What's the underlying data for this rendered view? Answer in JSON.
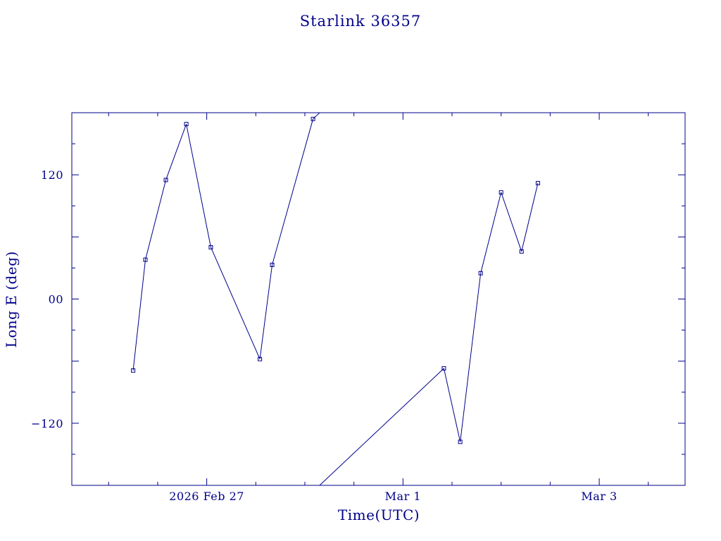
{
  "chart_data": {
    "type": "line",
    "title": "Starlink 36357",
    "xlabel": "Time(UTC)",
    "ylabel": "Long E (deg)",
    "x_tick_labels": [
      {
        "date": "2026-02-27",
        "label": "2026 Feb 27"
      },
      {
        "date": "2026-03-01",
        "label": "Mar  1"
      },
      {
        "date": "2026-03-03",
        "label": "Mar  3"
      }
    ],
    "y_tick_labels": [
      {
        "value": 120,
        "label": "120"
      },
      {
        "value": 0,
        "label": "00"
      },
      {
        "value": -120,
        "label": "−120"
      }
    ],
    "xlim": [
      "2026-02-25T15:00",
      "2026-03-03T21:00"
    ],
    "ylim": [
      -180,
      180
    ],
    "grid": false,
    "legend": "none",
    "color": "#00008b",
    "series": [
      {
        "points": [
          {
            "t": "2026-02-26T06:00",
            "lon": -69
          },
          {
            "t": "2026-02-26T09:00",
            "lon": 38
          },
          {
            "t": "2026-02-26T14:00",
            "lon": 115
          },
          {
            "t": "2026-02-26T19:00",
            "lon": 169
          },
          {
            "t": "2026-02-27T01:00",
            "lon": 50
          },
          {
            "t": "2026-02-27T13:00",
            "lon": -58
          },
          {
            "t": "2026-02-27T16:00",
            "lon": 33
          },
          {
            "t": "2026-02-28T02:00",
            "lon": 174
          },
          {
            "t": "2026-03-01T10:00",
            "lon": -67
          },
          {
            "t": "2026-03-01T14:00",
            "lon": -138
          },
          {
            "t": "2026-03-01T19:00",
            "lon": 25
          },
          {
            "t": "2026-03-02T00:00",
            "lon": 103
          },
          {
            "t": "2026-03-02T05:00",
            "lon": 46
          },
          {
            "t": "2026-03-02T09:00",
            "lon": 112
          }
        ],
        "wrap_segment": {
          "from": {
            "t": "2026-02-28T02:00",
            "lon": 174
          },
          "to": {
            "t": "2026-03-01T10:00",
            "lon": -67
          }
        }
      }
    ]
  }
}
